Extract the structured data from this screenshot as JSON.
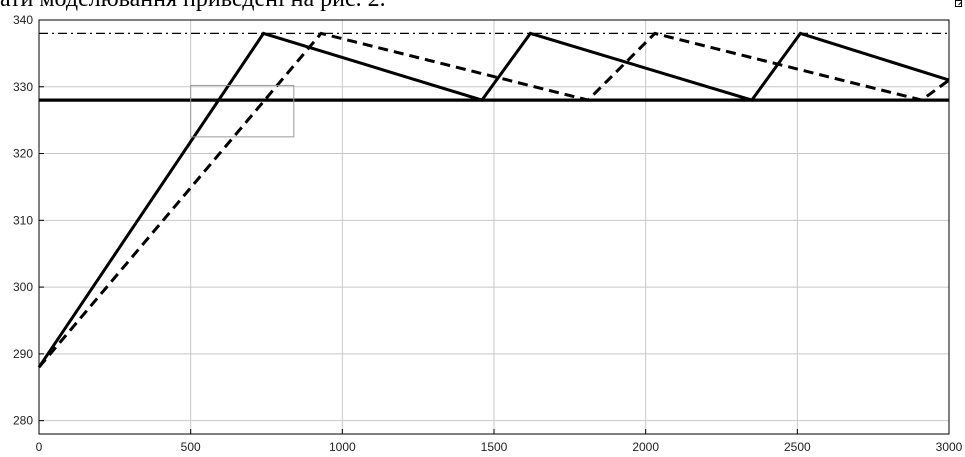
{
  "header": {
    "text": "ати моделювання приведені на рис. 2."
  },
  "chart_data": {
    "type": "line",
    "title": "",
    "xlabel": "",
    "ylabel": "",
    "xlim": [
      0,
      3000
    ],
    "ylim": [
      278,
      340
    ],
    "xticks": [
      0,
      500,
      1000,
      1500,
      2000,
      2500,
      3000
    ],
    "yticks": [
      280,
      290,
      300,
      310,
      320,
      330,
      340
    ],
    "grid": true,
    "legend": "none",
    "series": [
      {
        "style": "solid",
        "color": "#000000",
        "x": [
          0,
          740,
          1460,
          1620,
          2350,
          2510,
          3000
        ],
        "y": [
          288,
          338,
          328,
          338,
          328,
          338,
          331
        ]
      },
      {
        "style": "dashed",
        "color": "#000000",
        "x": [
          0,
          930,
          1810,
          2030,
          2910,
          3000
        ],
        "y": [
          288,
          338,
          328,
          338,
          328,
          331
        ]
      },
      {
        "style": "solid-thick",
        "color": "#000000",
        "x": [
          0,
          3000
        ],
        "y": [
          328,
          328
        ]
      },
      {
        "style": "dashdot",
        "color": "#000000",
        "x": [
          0,
          3000
        ],
        "y": [
          338,
          338
        ]
      }
    ],
    "annotations": [
      {
        "type": "rectangle",
        "x": [
          500,
          840
        ],
        "y": [
          322.5,
          330.2
        ]
      }
    ]
  }
}
